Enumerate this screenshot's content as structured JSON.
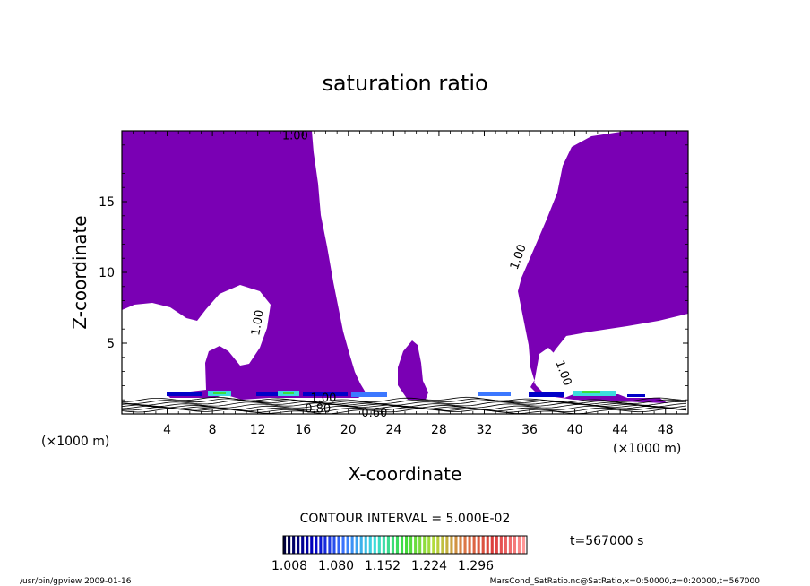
{
  "chart_data": {
    "type": "heatmap",
    "title": "saturation ratio",
    "xlabel": "X-coordinate",
    "ylabel": "Z-coordinate",
    "x_unit_label_left": "(×1000 m)",
    "x_unit_label_right": "(×1000 m)",
    "xlim": [
      0,
      50
    ],
    "ylim": [
      0,
      20
    ],
    "x_ticks": [
      4,
      8,
      12,
      16,
      20,
      24,
      28,
      32,
      36,
      40,
      44,
      48
    ],
    "y_ticks": [
      5,
      10,
      15
    ],
    "contour_labels": [
      {
        "text": "1.00",
        "x": 15.3,
        "z": 19.4,
        "angle": 0
      },
      {
        "text": "1.00",
        "x": 12.3,
        "z": 6.4,
        "angle": -80
      },
      {
        "text": "1.00",
        "x": 35.3,
        "z": 11.0,
        "angle": -70
      },
      {
        "text": "1.00",
        "x": 38.7,
        "z": 2.8,
        "angle": 70
      },
      {
        "text": "1.00",
        "x": 17.8,
        "z": 0.85,
        "angle": 0
      },
      {
        "text": "0.80",
        "x": 17.3,
        "z": 0.1,
        "angle": 0
      },
      {
        "text": "0.60",
        "x": 22.3,
        "z": -0.2,
        "angle": 0
      }
    ],
    "contour_interval_text": "CONTOUR INTERVAL = 5.000E-02",
    "colorbar": {
      "ticks": [
        "1.008",
        "1.080",
        "1.152",
        "1.224",
        "1.296"
      ],
      "colors": [
        "#00003c",
        "#0000c8",
        "#3c78ff",
        "#3cdcdc",
        "#3cdc3c",
        "#b4dc3c",
        "#dc7846",
        "#dc3c3c",
        "#ff9696"
      ]
    },
    "time_label": "t=567000 s",
    "fill_color": "#7a00b4"
  },
  "footer": {
    "left": "/usr/bin/gpview  2009-01-16",
    "right": "MarsCond_SatRatio.nc@SatRatio,x=0:50000,z=0:20000,t=567000"
  }
}
